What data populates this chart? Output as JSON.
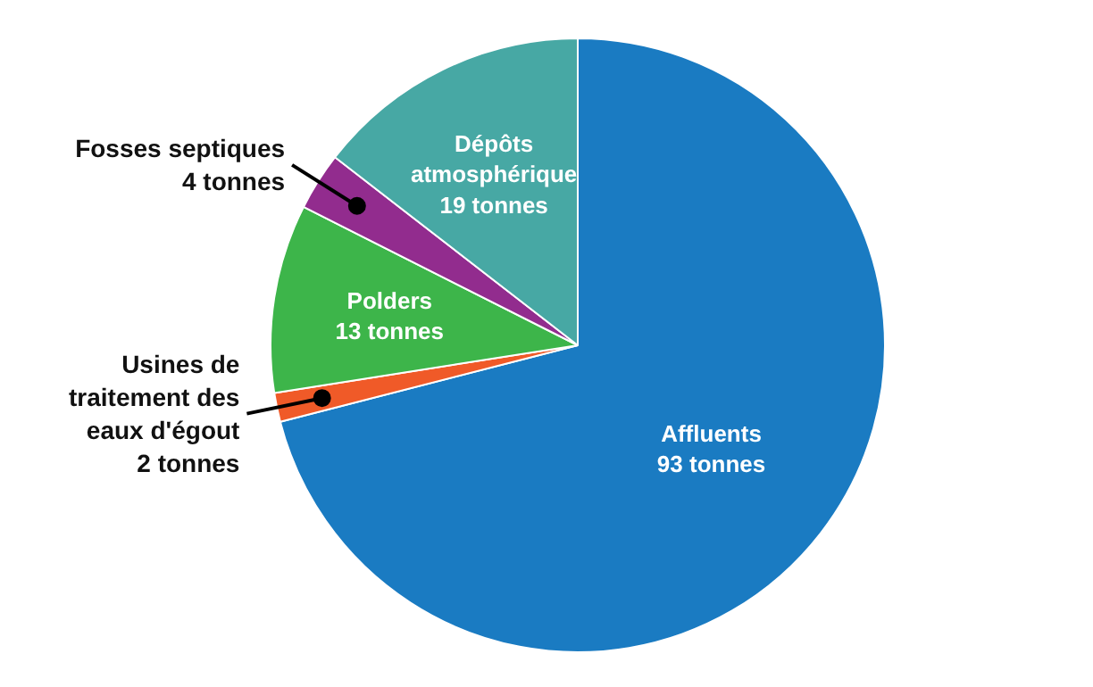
{
  "chart_data": {
    "type": "pie",
    "categories": [
      "Affluents",
      "Usines de\ntraitement des\neaux d'égout",
      "Polders",
      "Fosses septiques",
      "Dépôts\natmosphérique"
    ],
    "values": [
      93,
      2,
      13,
      4,
      19
    ],
    "value_labels": [
      "93 tonnes",
      "2 tonnes",
      "13 tonnes",
      "4 tonnes",
      "19 tonnes"
    ],
    "colors": [
      "#1a7bc2",
      "#f05a28",
      "#3db54a",
      "#922c8e",
      "#47a8a4"
    ],
    "legend": false
  }
}
